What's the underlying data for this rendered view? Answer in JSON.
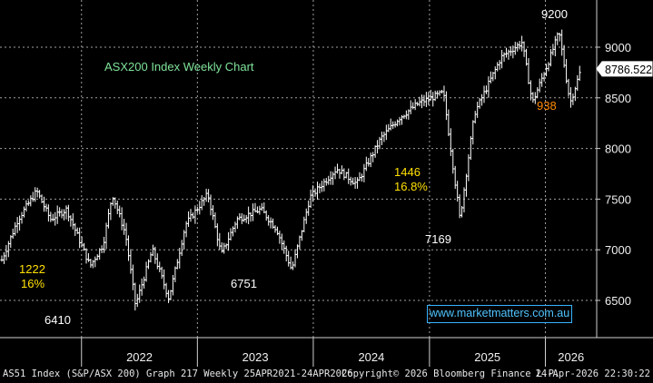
{
  "chart_data": {
    "type": "candlestick",
    "title": "ASX200 Index Weekly Chart",
    "source_site": "www.marketmatters.com.au",
    "x_tick_labels": [
      "2022",
      "2023",
      "2024",
      "2025",
      "2026"
    ],
    "y_tick_labels": [
      "6500",
      "7000",
      "7500",
      "8000",
      "8500",
      "9000"
    ],
    "ylim": [
      6200,
      9350
    ],
    "xlim": [
      "2021-04-25",
      "2026-04-24"
    ],
    "grid": true,
    "last_price": "8786.522",
    "annotations": [
      {
        "id": "ann-1222",
        "text": "1222",
        "color": "#ffe000"
      },
      {
        "id": "ann-16",
        "text": "16%",
        "color": "#ffe000"
      },
      {
        "id": "ann-6410",
        "text": "6410",
        "color": "#ffffff"
      },
      {
        "id": "ann-6751",
        "text": "6751",
        "color": "#ffffff"
      },
      {
        "id": "ann-1446",
        "text": "1446",
        "color": "#ffe000"
      },
      {
        "id": "ann-168",
        "text": "16.8%",
        "color": "#ffe000"
      },
      {
        "id": "ann-7169",
        "text": "7169",
        "color": "#ffffff"
      },
      {
        "id": "ann-9200",
        "text": "9200",
        "color": "#ffffff"
      },
      {
        "id": "ann-938",
        "text": "938",
        "color": "#ff8a00"
      }
    ],
    "weekly_path": [
      {
        "date": "2021-04-25",
        "close": 6900
      },
      {
        "date": "2021-06-15",
        "close": 7300
      },
      {
        "date": "2021-08-13",
        "close": 7580
      },
      {
        "date": "2021-09-25",
        "close": 7300
      },
      {
        "date": "2021-11-15",
        "close": 7400
      },
      {
        "date": "2022-01-28",
        "close": 6840
      },
      {
        "date": "2022-03-10",
        "close": 7050
      },
      {
        "date": "2022-04-08",
        "close": 7550
      },
      {
        "date": "2022-05-20",
        "close": 7150
      },
      {
        "date": "2022-06-20",
        "close": 6450
      },
      {
        "date": "2022-08-12",
        "close": 7000
      },
      {
        "date": "2022-10-03",
        "close": 6520
      },
      {
        "date": "2022-11-25",
        "close": 7250
      },
      {
        "date": "2023-02-03",
        "close": 7550
      },
      {
        "date": "2023-03-17",
        "close": 6950
      },
      {
        "date": "2023-05-05",
        "close": 7300
      },
      {
        "date": "2023-07-20",
        "close": 7400
      },
      {
        "date": "2023-09-08",
        "close": 7200
      },
      {
        "date": "2023-10-25",
        "close": 6800
      },
      {
        "date": "2023-12-22",
        "close": 7520
      },
      {
        "date": "2024-03-15",
        "close": 7800
      },
      {
        "date": "2024-05-17",
        "close": 7650
      },
      {
        "date": "2024-08-01",
        "close": 8100
      },
      {
        "date": "2024-09-27",
        "close": 8300
      },
      {
        "date": "2024-11-29",
        "close": 8450
      },
      {
        "date": "2025-02-14",
        "close": 8550
      },
      {
        "date": "2025-04-07",
        "close": 7300
      },
      {
        "date": "2025-05-23",
        "close": 8350
      },
      {
        "date": "2025-08-15",
        "close": 8900
      },
      {
        "date": "2025-10-20",
        "close": 9050
      },
      {
        "date": "2025-11-21",
        "close": 8450
      },
      {
        "date": "2026-01-16",
        "close": 8900
      },
      {
        "date": "2026-02-13",
        "close": 9150
      },
      {
        "date": "2026-03-20",
        "close": 8450
      },
      {
        "date": "2026-04-24",
        "close": 8790
      }
    ]
  },
  "footer": {
    "left": "AS51 Index (S&P/ASX 200) Graph 217 Weekly 25APR2021-24APR2026",
    "mid": "Copyright© 2026 Bloomberg Finance L.P.",
    "right": "24-Apr-2026 22:30:22"
  }
}
